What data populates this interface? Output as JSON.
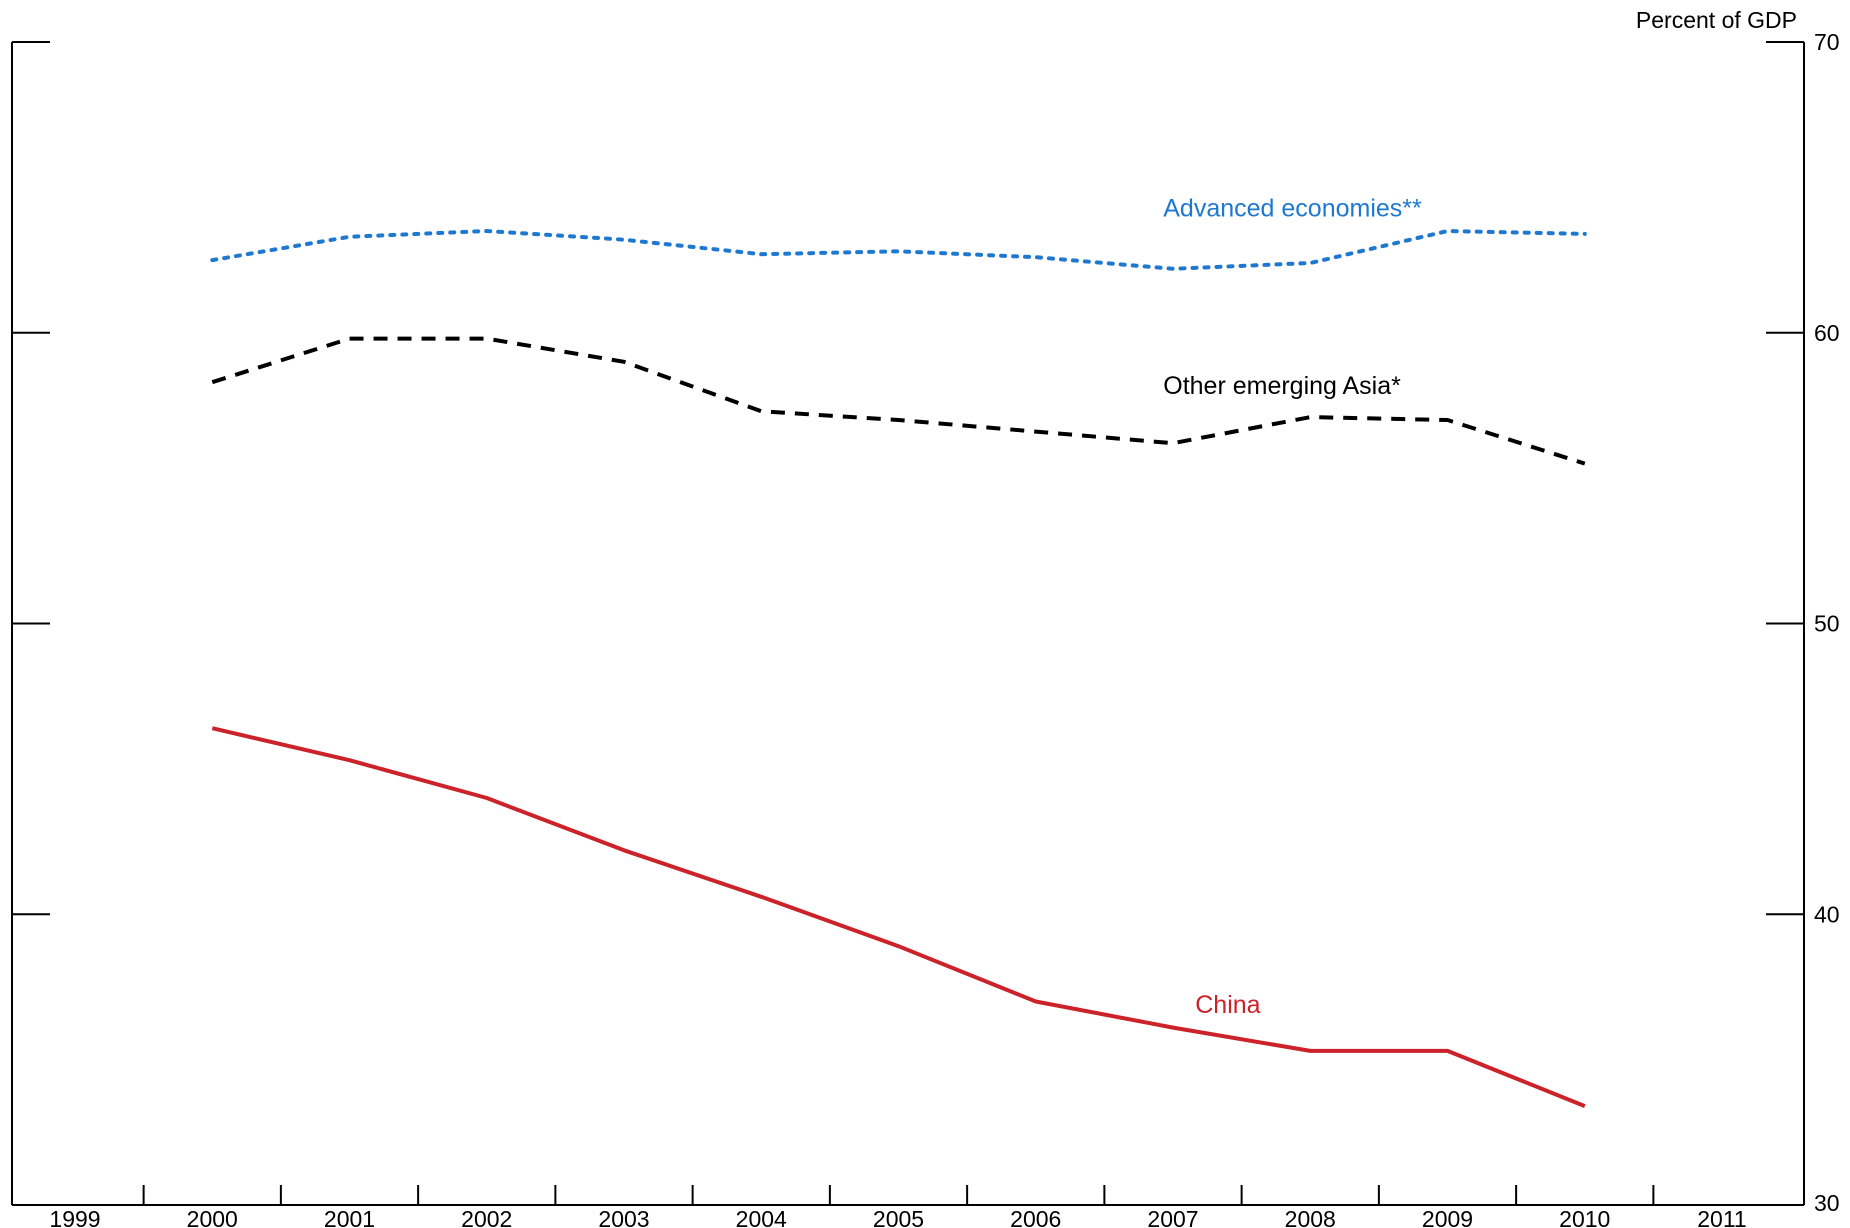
{
  "chart_data": {
    "type": "line",
    "y_axis_unit": "Percent of GDP",
    "y_axis_side": "right",
    "xlim": [
      1999,
      2011
    ],
    "ylim": [
      30,
      70
    ],
    "x_ticks": [
      1999,
      2000,
      2001,
      2002,
      2003,
      2004,
      2005,
      2006,
      2007,
      2008,
      2009,
      2010,
      2011
    ],
    "y_ticks": [
      30,
      40,
      50,
      60,
      70
    ],
    "grid": false,
    "x": [
      2000,
      2001,
      2002,
      2003,
      2004,
      2005,
      2006,
      2007,
      2008,
      2009,
      2010
    ],
    "series": [
      {
        "name": "Advanced economies**",
        "color": "#1f78d0",
        "style": "dotted",
        "values": [
          62.5,
          63.3,
          63.5,
          63.2,
          62.7,
          62.8,
          62.6,
          62.2,
          62.4,
          63.5,
          63.4
        ]
      },
      {
        "name": "Other emerging Asia*",
        "color": "#000000",
        "style": "dashed",
        "values": [
          58.3,
          59.8,
          59.8,
          59.0,
          57.3,
          57.0,
          56.6,
          56.2,
          57.1,
          57.0,
          55.5
        ]
      },
      {
        "name": "China",
        "color": "#cc2229",
        "style": "solid",
        "values": [
          46.4,
          45.3,
          44.0,
          42.2,
          40.6,
          38.9,
          37.0,
          36.1,
          35.3,
          35.3,
          33.4
        ]
      }
    ],
    "annotations": [
      {
        "text": "Advanced economies**",
        "series": 0,
        "x": 2008.0,
        "y": 64.0
      },
      {
        "text": "Other emerging Asia*",
        "series": 1,
        "x": 2008.0,
        "y": 57.9
      },
      {
        "text": "China",
        "series": 2,
        "x": 2007.4,
        "y": 36.6
      }
    ]
  }
}
